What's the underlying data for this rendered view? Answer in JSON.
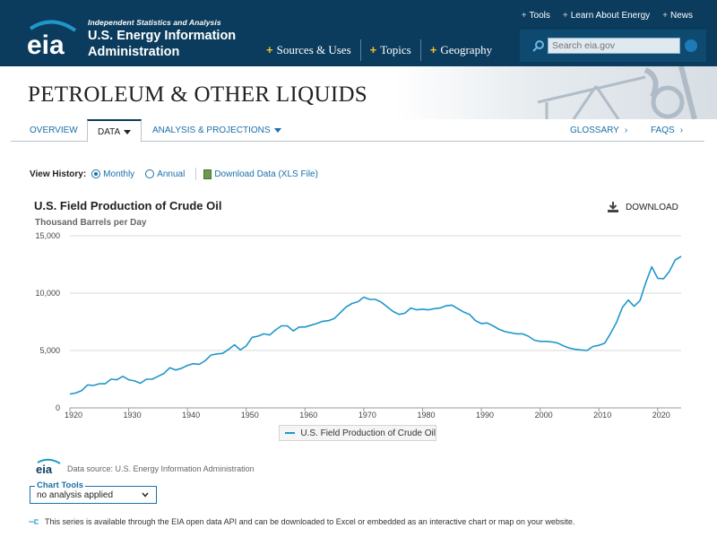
{
  "header": {
    "logo_word": "eia",
    "tagline": "Independent Statistics and Analysis",
    "agency_line1": "U.S. Energy Information",
    "agency_line2": "Administration",
    "top_links": [
      "Tools",
      "Learn About Energy",
      "News"
    ],
    "main_nav": [
      "Sources & Uses",
      "Topics",
      "Geography"
    ],
    "search_placeholder": "Search eia.gov"
  },
  "banner": {
    "title": "PETROLEUM & OTHER LIQUIDS"
  },
  "subnav": {
    "tabs": [
      "OVERVIEW",
      "DATA",
      "ANALYSIS & PROJECTIONS"
    ],
    "right_tabs": [
      "GLOSSARY",
      "FAQS"
    ]
  },
  "view_history": {
    "label": "View History:",
    "options": [
      "Monthly",
      "Annual"
    ],
    "selected": "Monthly",
    "download_link": "Download Data (XLS File)"
  },
  "download_button": "DOWNLOAD",
  "datasource": "Data source: U.S. Energy Information Administration",
  "chart_tools": {
    "label": "Chart Tools",
    "value": "no analysis applied"
  },
  "api_note": "This series is available through the EIA open data API and can be downloaded to Excel or embedded as an interactive chart or map on your website.",
  "colors": {
    "header_bg": "#0b3c5d",
    "series": "#1f97c9",
    "link": "#1a6fa8",
    "accent": "#f2c02e"
  },
  "chart_data": {
    "type": "line",
    "title": "U.S. Field Production of Crude Oil",
    "ylabel": "Thousand Barrels per Day",
    "xlabel": "",
    "xlim": [
      1920,
      2024
    ],
    "ylim": [
      0,
      15000
    ],
    "x_ticks": [
      "1920",
      "1930",
      "1940",
      "1950",
      "1960",
      "1970",
      "1980",
      "1990",
      "2000",
      "2010",
      "2020"
    ],
    "y_ticks": [
      "0",
      "5,000",
      "10,000",
      "15,000"
    ],
    "grid": true,
    "legend_placement": "bottom",
    "series": [
      {
        "name": "U.S. Field Production of Crude Oil",
        "x": [
          1920,
          1921,
          1922,
          1923,
          1924,
          1925,
          1926,
          1927,
          1928,
          1929,
          1930,
          1931,
          1932,
          1933,
          1934,
          1935,
          1936,
          1937,
          1938,
          1939,
          1940,
          1941,
          1942,
          1943,
          1944,
          1945,
          1946,
          1947,
          1948,
          1949,
          1950,
          1951,
          1952,
          1953,
          1954,
          1955,
          1956,
          1957,
          1958,
          1959,
          1960,
          1961,
          1962,
          1963,
          1964,
          1965,
          1966,
          1967,
          1968,
          1969,
          1970,
          1971,
          1972,
          1973,
          1974,
          1975,
          1976,
          1977,
          1978,
          1979,
          1980,
          1981,
          1982,
          1983,
          1984,
          1985,
          1986,
          1987,
          1988,
          1989,
          1990,
          1991,
          1992,
          1993,
          1994,
          1995,
          1996,
          1997,
          1998,
          1999,
          2000,
          2001,
          2002,
          2003,
          2004,
          2005,
          2006,
          2007,
          2008,
          2009,
          2010,
          2011,
          2012,
          2013,
          2014,
          2015,
          2016,
          2017,
          2018,
          2019,
          2020,
          2021,
          2022,
          2023,
          2024
        ],
        "values": [
          1200,
          1300,
          1500,
          2000,
          1950,
          2100,
          2100,
          2500,
          2450,
          2750,
          2450,
          2350,
          2150,
          2500,
          2500,
          2750,
          3000,
          3500,
          3300,
          3450,
          3700,
          3850,
          3800,
          4100,
          4600,
          4700,
          4750,
          5100,
          5500,
          5050,
          5400,
          6150,
          6250,
          6450,
          6350,
          6800,
          7150,
          7150,
          6700,
          7050,
          7050,
          7200,
          7350,
          7550,
          7600,
          7800,
          8300,
          8800,
          9100,
          9250,
          9650,
          9450,
          9450,
          9200,
          8800,
          8400,
          8150,
          8250,
          8700,
          8550,
          8600,
          8550,
          8650,
          8700,
          8900,
          8950,
          8650,
          8350,
          8150,
          7600,
          7350,
          7400,
          7150,
          6850,
          6650,
          6550,
          6450,
          6450,
          6250,
          5900,
          5800,
          5800,
          5750,
          5650,
          5400,
          5200,
          5100,
          5050,
          5000,
          5350,
          5450,
          5650,
          6500,
          7450,
          8750,
          9400,
          8850,
          9350,
          10950,
          12300,
          11300,
          11250,
          11900,
          12900,
          13200
        ]
      }
    ]
  }
}
